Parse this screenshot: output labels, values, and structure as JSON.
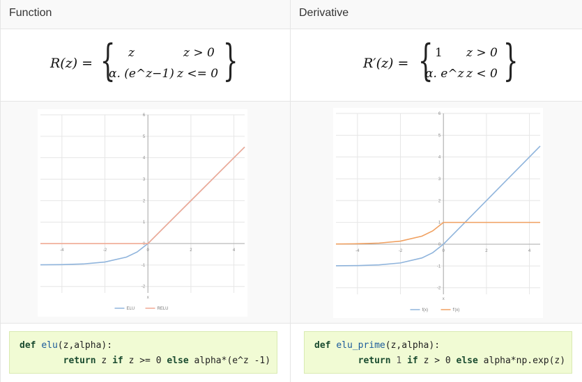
{
  "headers": {
    "function": "Function",
    "derivative": "Derivative"
  },
  "formulas": {
    "function": {
      "lhs": "R(z) =",
      "case1_value": "z",
      "case1_cond": "z > 0",
      "case2_value": "α. (e^z−1)",
      "case2_cond": "z <= 0"
    },
    "derivative": {
      "lhs": "R′(z) =",
      "case1_value": "1",
      "case1_cond": "z > 0",
      "case2_value": "α. e^z",
      "case2_cond": "z < 0"
    }
  },
  "code": {
    "function": {
      "keyword_def": "def",
      "name": "elu",
      "signature": "(z,alpha):",
      "keyword_return": "return",
      "body_a": "z",
      "keyword_if": "if",
      "body_b": "z >= 0",
      "keyword_else": "else",
      "body_c": "alpha*(e^z -1)"
    },
    "derivative": {
      "keyword_def": "def",
      "name": "elu_prime",
      "signature": "(z,alpha):",
      "keyword_return": "return",
      "body_a": "1",
      "keyword_if": "if",
      "body_b": "z > 0",
      "keyword_else": "else",
      "body_c": "alpha*np.exp(z)"
    }
  },
  "chart_data": [
    {
      "type": "line",
      "xlabel": "x",
      "xlim": [
        -5,
        4.5
      ],
      "ylim": [
        -2.3,
        6
      ],
      "x_ticks": [
        "-4",
        "-2",
        "0",
        "2",
        "4"
      ],
      "y_ticks": [
        "-2",
        "-1",
        "0",
        "1",
        "2",
        "3",
        "4",
        "5",
        "6"
      ],
      "legend_position": "bottom",
      "series": [
        {
          "name": "ELU",
          "color": "#8fb4dc",
          "x": [
            -5,
            -4,
            -3,
            -2,
            -1,
            -0.5,
            0,
            1,
            2,
            3,
            4.5
          ],
          "y": [
            -0.99,
            -0.98,
            -0.95,
            -0.86,
            -0.63,
            -0.39,
            0,
            1,
            2,
            3,
            4.5
          ]
        },
        {
          "name": "RELU",
          "color": "#f0a994",
          "x": [
            -5,
            0,
            1,
            2,
            3,
            4.5
          ],
          "y": [
            0,
            0,
            1,
            2,
            3,
            4.5
          ]
        }
      ]
    },
    {
      "type": "line",
      "xlabel": "x",
      "xlim": [
        -5,
        4.5
      ],
      "ylim": [
        -2.3,
        6
      ],
      "x_ticks": [
        "-4",
        "-2",
        "0",
        "2",
        "4"
      ],
      "y_ticks": [
        "-2",
        "-1",
        "0",
        "1",
        "2",
        "3",
        "4",
        "5",
        "6"
      ],
      "legend_position": "bottom",
      "series": [
        {
          "name": "f(x)",
          "color": "#8fb4dc",
          "x": [
            -5,
            -4,
            -3,
            -2,
            -1,
            -0.5,
            0,
            1,
            2,
            3,
            4.5
          ],
          "y": [
            -0.99,
            -0.98,
            -0.95,
            -0.86,
            -0.63,
            -0.39,
            0,
            1,
            2,
            3,
            4.5
          ]
        },
        {
          "name": "f'(x)",
          "color": "#f0a060",
          "x": [
            -5,
            -4,
            -3,
            -2,
            -1,
            -0.5,
            0,
            1,
            2,
            3,
            4.5
          ],
          "y": [
            0.01,
            0.02,
            0.05,
            0.14,
            0.37,
            0.61,
            1,
            1,
            1,
            1,
            1
          ]
        }
      ]
    }
  ]
}
